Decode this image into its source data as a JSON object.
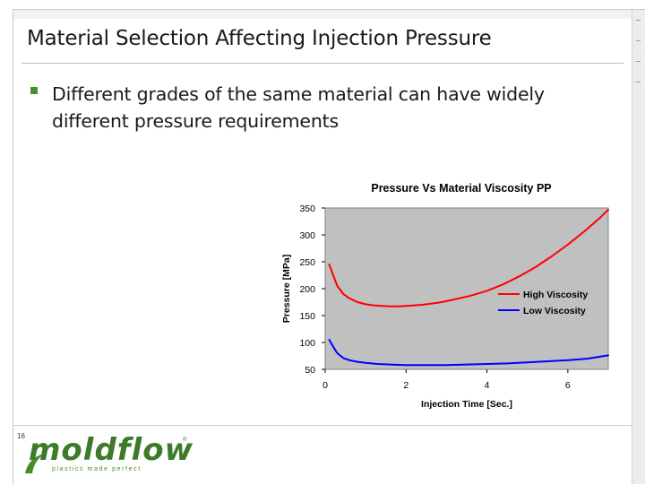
{
  "slide": {
    "title": "Material Selection Affecting Injection Pressure",
    "bullet": "Different grades of the same material can have widely different pressure requirements",
    "page_number": "16",
    "logo": {
      "word": "moldflow",
      "tagline": "plastics made perfect",
      "mark": "®"
    }
  },
  "colors": {
    "accent": "#4a8c2a",
    "plot_background": "#c0c0c0",
    "high_viscosity": "#ff0000",
    "low_viscosity": "#0000ff"
  },
  "chart_data": {
    "type": "line",
    "title": "Pressure Vs Material Viscosity  PP",
    "xlabel": "Injection Time [Sec.]",
    "ylabel": "Pressure [MPa]",
    "xlim": [
      0,
      7
    ],
    "ylim": [
      50,
      350
    ],
    "x_ticks": [
      0,
      2,
      4,
      6
    ],
    "y_ticks": [
      50,
      100,
      150,
      200,
      250,
      300,
      350
    ],
    "grid": false,
    "legend_position": "right",
    "series": [
      {
        "name": "High Viscosity",
        "color": "#ff0000",
        "x": [
          0.1,
          0.2,
          0.3,
          0.45,
          0.6,
          0.8,
          1.0,
          1.2,
          1.4,
          1.6,
          1.8,
          2.0,
          2.4,
          2.8,
          3.2,
          3.6,
          4.0,
          4.4,
          4.8,
          5.2,
          5.6,
          6.0,
          6.4,
          6.8,
          7.0
        ],
        "y": [
          245,
          225,
          205,
          190,
          182,
          175,
          171,
          169,
          168,
          167,
          167,
          168,
          170,
          174,
          180,
          187,
          196,
          208,
          223,
          240,
          260,
          282,
          306,
          332,
          347
        ]
      },
      {
        "name": "Low Viscosity",
        "color": "#0000ff",
        "x": [
          0.1,
          0.2,
          0.3,
          0.45,
          0.6,
          0.8,
          1.0,
          1.3,
          1.6,
          2.0,
          2.5,
          3.0,
          3.5,
          4.0,
          4.5,
          5.0,
          5.5,
          6.0,
          6.5,
          7.0
        ],
        "y": [
          105,
          92,
          80,
          71,
          67,
          64,
          62,
          60,
          59,
          58,
          58,
          58,
          59,
          60,
          61,
          63,
          65,
          67,
          70,
          76
        ]
      }
    ]
  }
}
